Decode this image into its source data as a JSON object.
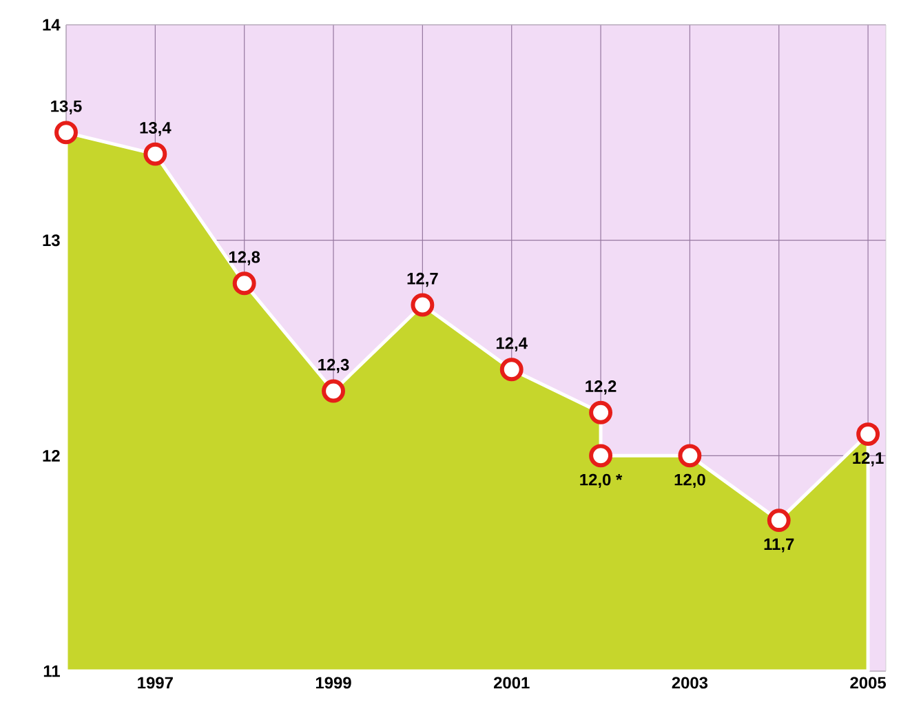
{
  "chart_data": {
    "type": "area",
    "x": [
      1996,
      1997,
      1998,
      1999,
      2000,
      2001,
      2002,
      2002,
      2003,
      2004,
      2005
    ],
    "series": [
      {
        "color": "#c6d62c",
        "values": [
          13.5,
          13.4,
          12.8,
          12.3,
          12.7,
          12.4,
          12.2,
          12.0,
          12.0,
          11.7,
          12.1
        ],
        "value_labels": [
          "13,5",
          "13,4",
          "12,8",
          "12,3",
          "12,7",
          "12,4",
          "12,2",
          "12,0 *",
          "12,0",
          "11,7",
          "12,1"
        ]
      }
    ],
    "xlim": [
      1996,
      2005.2
    ],
    "ylim": [
      11,
      14
    ],
    "xticks": [
      {
        "value": 1996,
        "label": null
      },
      1997,
      {
        "value": 1998,
        "label": null
      },
      1999,
      {
        "value": 2000,
        "label": null
      },
      2001,
      {
        "value": 2002,
        "label": null
      },
      2003,
      {
        "value": 2004,
        "label": null
      },
      2005
    ],
    "yticks": [
      11,
      12,
      13,
      14
    ],
    "grid": true,
    "marker": "circle"
  }
}
